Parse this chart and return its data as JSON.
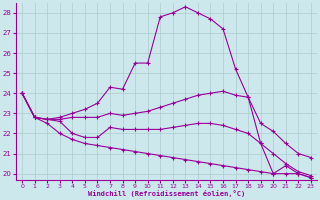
{
  "xlabel": "Windchill (Refroidissement éolien,°C)",
  "bg_color": "#cce8ec",
  "line_color": "#990099",
  "grid_color": "#aacccc",
  "ylim": [
    19.7,
    28.5
  ],
  "yticks": [
    20,
    21,
    22,
    23,
    24,
    25,
    26,
    27,
    28
  ],
  "xticks": [
    0,
    1,
    2,
    3,
    4,
    5,
    6,
    7,
    8,
    9,
    10,
    11,
    12,
    13,
    14,
    15,
    16,
    17,
    18,
    19,
    20,
    21,
    22,
    23
  ],
  "lines": [
    [
      24.0,
      22.8,
      22.7,
      22.8,
      23.0,
      23.2,
      23.5,
      24.3,
      24.2,
      25.5,
      25.5,
      27.8,
      28.0,
      28.3,
      28.0,
      27.7,
      27.2,
      25.2,
      23.8,
      21.5,
      20.0,
      20.4,
      20.0,
      19.8
    ],
    [
      24.0,
      22.8,
      22.7,
      22.7,
      22.8,
      22.8,
      22.8,
      23.0,
      22.9,
      23.0,
      23.1,
      23.3,
      23.5,
      23.7,
      23.9,
      24.0,
      24.1,
      23.9,
      23.8,
      22.5,
      22.1,
      21.5,
      21.0,
      20.8
    ],
    [
      24.0,
      22.8,
      22.7,
      22.6,
      22.0,
      21.8,
      21.8,
      22.3,
      22.2,
      22.2,
      22.2,
      22.2,
      22.3,
      22.4,
      22.5,
      22.5,
      22.4,
      22.2,
      22.0,
      21.5,
      21.0,
      20.5,
      20.1,
      19.9
    ],
    [
      24.0,
      22.8,
      22.5,
      22.0,
      21.7,
      21.5,
      21.4,
      21.3,
      21.2,
      21.1,
      21.0,
      20.9,
      20.8,
      20.7,
      20.6,
      20.5,
      20.4,
      20.3,
      20.2,
      20.1,
      20.0,
      20.0,
      20.0,
      19.8
    ]
  ]
}
